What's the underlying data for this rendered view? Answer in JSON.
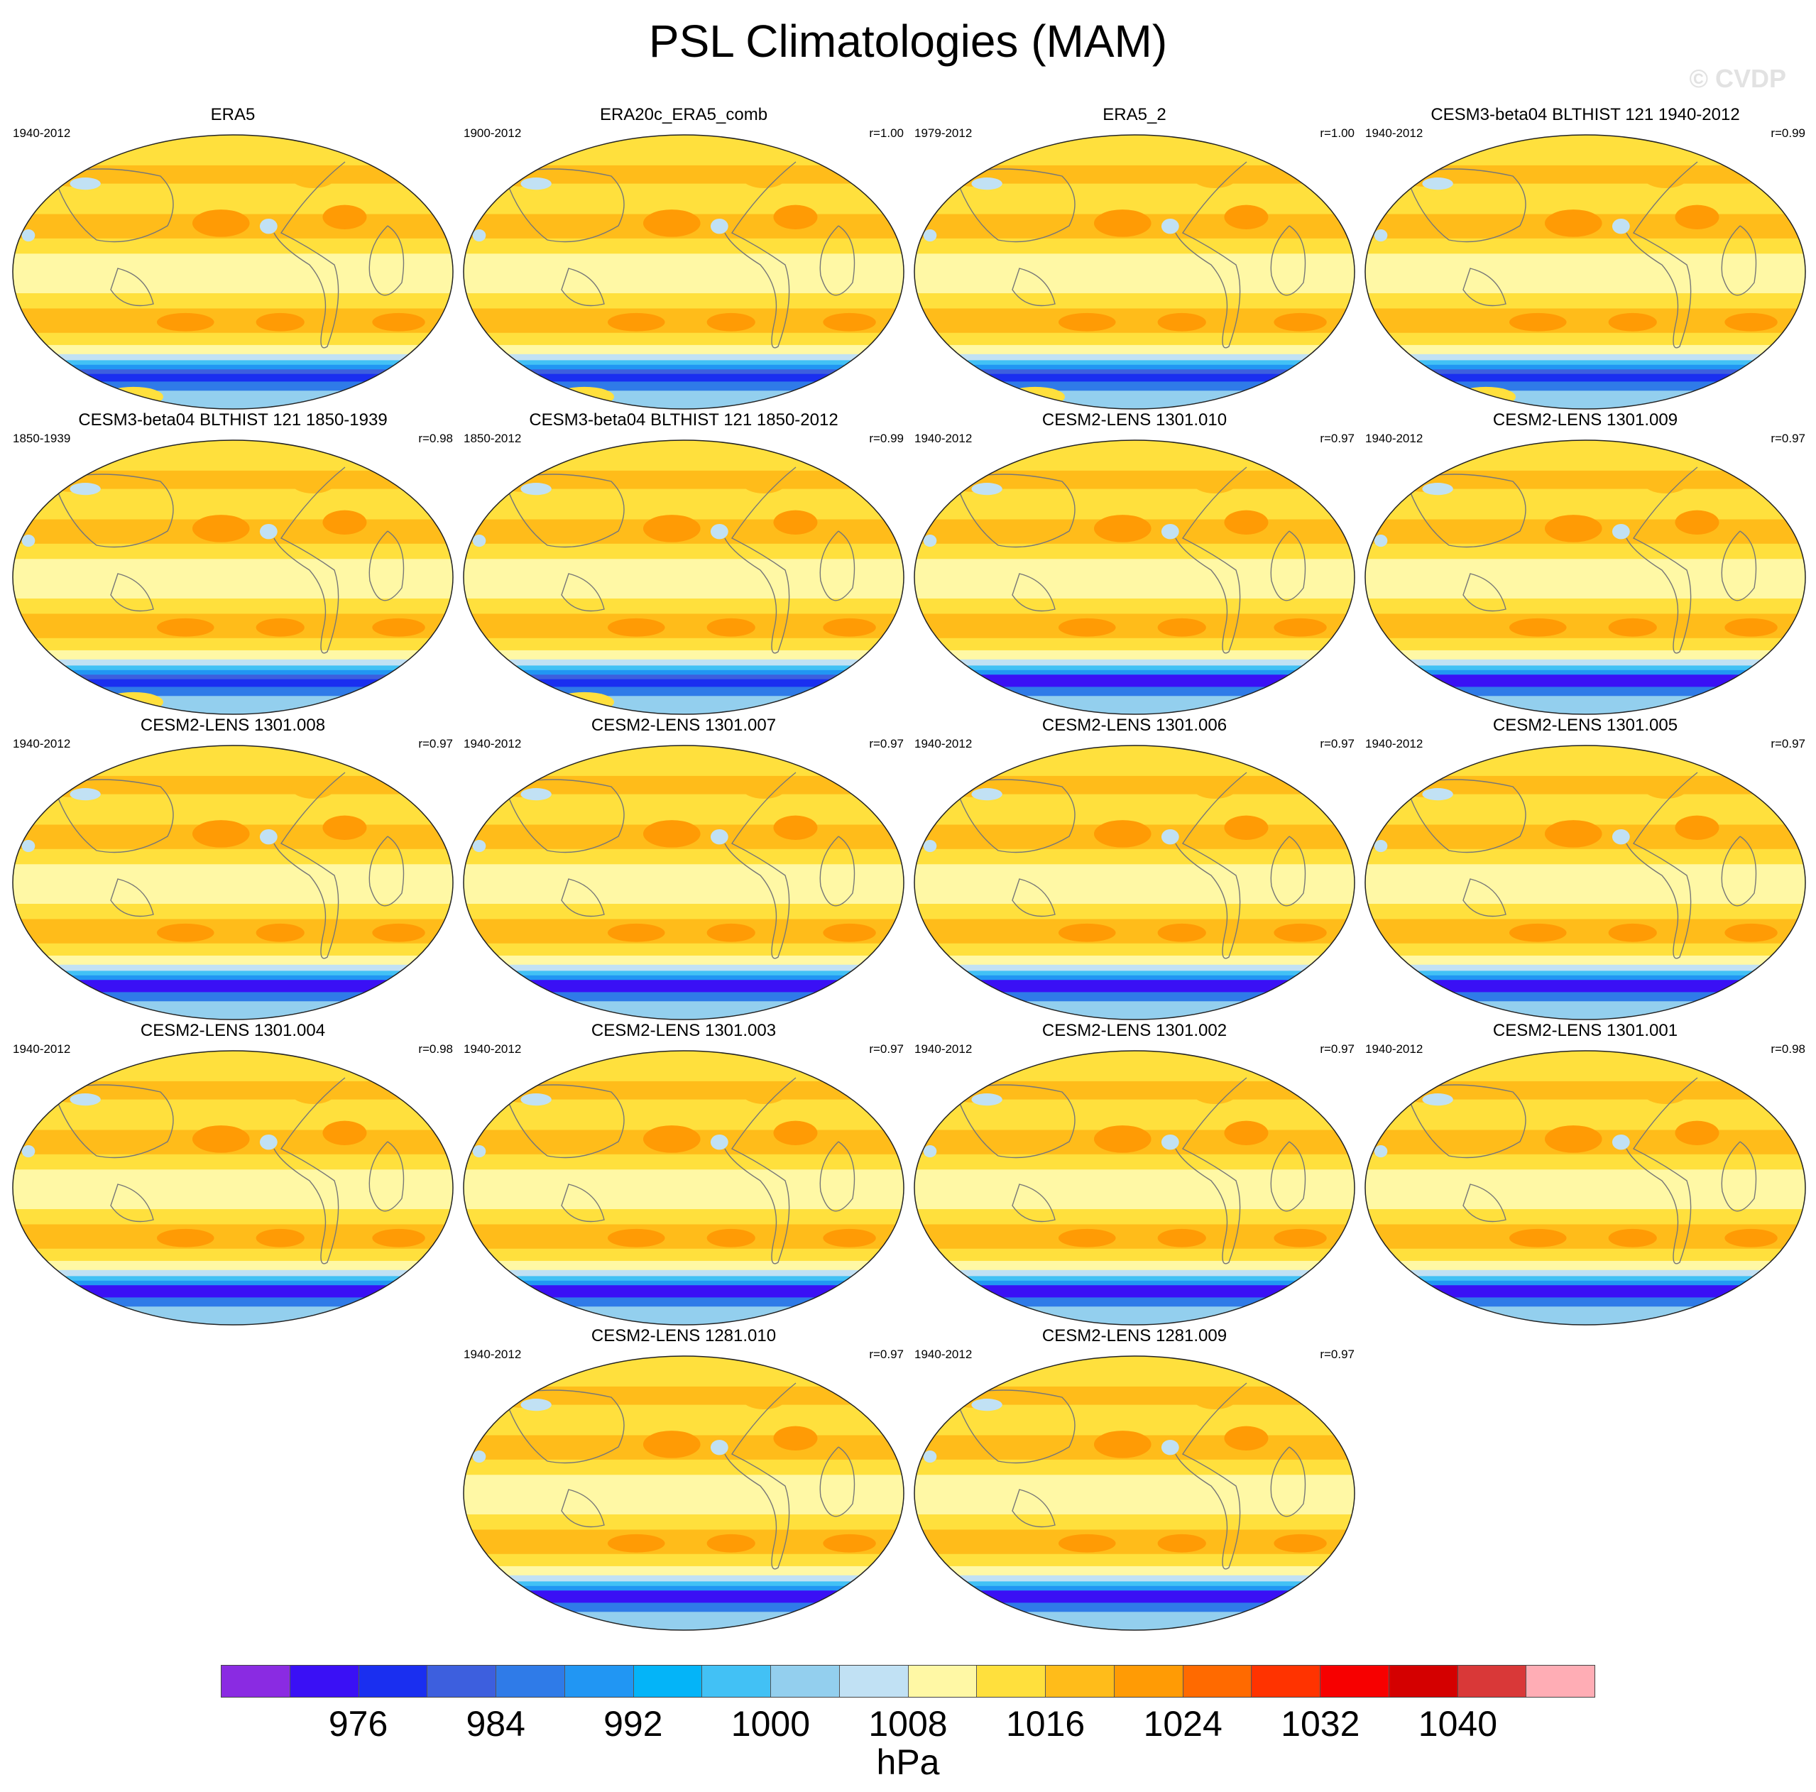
{
  "chart_data": {
    "type": "heatmap",
    "title": "PSL Climatologies (MAM)",
    "watermark": "© CVDP",
    "variable": "PSL",
    "season": "MAM",
    "units": "hPa",
    "projection": "global robinson",
    "colorbar": {
      "levels": [
        972,
        976,
        980,
        984,
        988,
        992,
        996,
        1000,
        1004,
        1008,
        1012,
        1016,
        1020,
        1024,
        1028,
        1032,
        1036,
        1040,
        1044
      ],
      "tick_labels": [
        "976",
        "984",
        "992",
        "1000",
        "1008",
        "1016",
        "1024",
        "1032",
        "1040"
      ],
      "tick_values": [
        976,
        984,
        992,
        1000,
        1008,
        1016,
        1024,
        1032,
        1040
      ],
      "colors": [
        "#8a2be2",
        "#3a10f5",
        "#1a2ff0",
        "#3d5fde",
        "#2f7be8",
        "#2196f3",
        "#04b4f8",
        "#42c1f5",
        "#93cfee",
        "#c1e1f4",
        "#fff8a5",
        "#ffe03d",
        "#ffbc1a",
        "#ff9b05",
        "#ff6a00",
        "#ff3300",
        "#f70000",
        "#d40000",
        "#d93838",
        "#ffadb5"
      ],
      "label": "hPa"
    },
    "panels": [
      {
        "title": "ERA5",
        "years": "1940-2012",
        "corr": ""
      },
      {
        "title": "ERA20c_ERA5_comb",
        "years": "1900-2012",
        "corr": "r=1.00"
      },
      {
        "title": "ERA5_2",
        "years": "1979-2012",
        "corr": "r=1.00"
      },
      {
        "title": "CESM3-beta04 BLTHIST 121 1940-2012",
        "years": "1940-2012",
        "corr": "r=0.99"
      },
      {
        "title": "CESM3-beta04 BLTHIST 121 1850-1939",
        "years": "1850-1939",
        "corr": "r=0.98"
      },
      {
        "title": "CESM3-beta04 BLTHIST 121 1850-2012",
        "years": "1850-2012",
        "corr": "r=0.99"
      },
      {
        "title": "CESM2-LENS 1301.010",
        "years": "1940-2012",
        "corr": "r=0.97"
      },
      {
        "title": "CESM2-LENS 1301.009",
        "years": "1940-2012",
        "corr": "r=0.97"
      },
      {
        "title": "CESM2-LENS 1301.008",
        "years": "1940-2012",
        "corr": "r=0.97"
      },
      {
        "title": "CESM2-LENS 1301.007",
        "years": "1940-2012",
        "corr": "r=0.97"
      },
      {
        "title": "CESM2-LENS 1301.006",
        "years": "1940-2012",
        "corr": "r=0.97"
      },
      {
        "title": "CESM2-LENS 1301.005",
        "years": "1940-2012",
        "corr": "r=0.97"
      },
      {
        "title": "CESM2-LENS 1301.004",
        "years": "1940-2012",
        "corr": "r=0.98"
      },
      {
        "title": "CESM2-LENS 1301.003",
        "years": "1940-2012",
        "corr": "r=0.97"
      },
      {
        "title": "CESM2-LENS 1301.002",
        "years": "1940-2012",
        "corr": "r=0.97"
      },
      {
        "title": "CESM2-LENS 1301.001",
        "years": "1940-2012",
        "corr": "r=0.98"
      },
      {
        "title": "CESM2-LENS 1281.010",
        "years": "1940-2012",
        "corr": "r=0.97"
      },
      {
        "title": "CESM2-LENS 1281.009",
        "years": "1940-2012",
        "corr": "r=0.97"
      }
    ]
  }
}
